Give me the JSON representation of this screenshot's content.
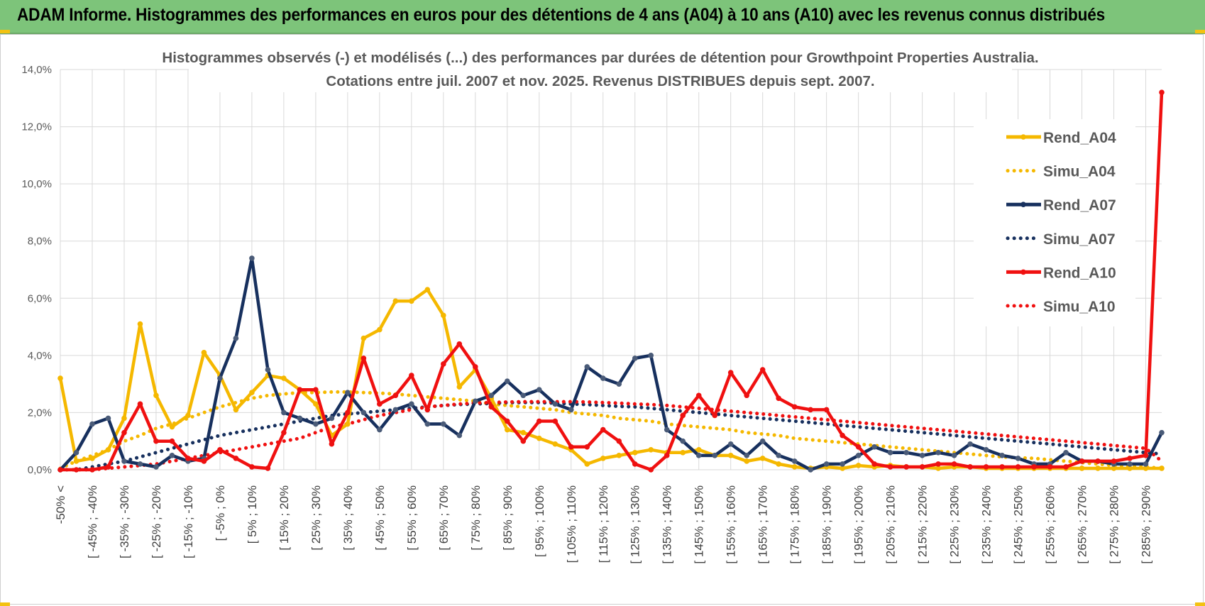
{
  "header": {
    "banner_title": "ADAM Informe. Histogrammes des performances en euros pour des détentions de 4 ans (A04) à 10 ans (A10) avec les revenus connus distribués"
  },
  "colors": {
    "banner_bg": "#7dc47a",
    "A04": "#f5b800",
    "A07": "#17305e",
    "A10": "#f01010",
    "grid": "#d9d9d9"
  },
  "chart_data": {
    "type": "line",
    "title_line1": "Histogrammes observés (-) et modélisés (...) des performances par durées de détention pour Growthpoint Properties Australia.",
    "title_line2": "Cotations entre juil. 2007 et nov. 2025. Revenus DISTRIBUES depuis sept. 2007.",
    "ylim": [
      0,
      14
    ],
    "y_ticks": [
      "0,0%",
      "2,0%",
      "4,0%",
      "6,0%",
      "8,0%",
      "10,0%",
      "12,0%",
      "14,0%"
    ],
    "x_tick_labels": [
      "-50% <",
      "[ -45% ; -40%",
      "[ -35% ; -30%",
      "[ -25% ; -20%",
      "[ -15% ; -10%",
      "[ -5% ; 0%",
      "[ 5% ; 10%",
      "[ 15% ; 20%",
      "[ 25% ; 30%",
      "[ 35% ; 40%",
      "[ 45% ; 50%",
      "[ 55% ; 60%",
      "[ 65% ; 70%",
      "[ 75% ; 80%",
      "[ 85% ; 90%",
      "[ 95% ; 100%",
      "[ 105% ; 110%",
      "[ 115% ; 120%",
      "[ 125% ; 130%",
      "[ 135% ; 140%",
      "[ 145% ; 150%",
      "[ 155% ; 160%",
      "[ 165% ; 170%",
      "[ 175% ; 180%",
      "[ 185% ; 190%",
      "[ 195% ; 200%",
      "[ 205% ; 210%",
      "[ 215% ; 220%",
      "[ 225% ; 230%",
      "[ 235% ; 240%",
      "[ 245% ; 250%",
      "[ 255% ; 260%",
      "[ 265% ; 270%",
      "[ 275% ; 280%",
      "[ 285% ; 290%"
    ],
    "n_categories": 70,
    "legend": [
      "Rend_A04",
      "Simu_A04",
      "Rend_A07",
      "Simu_A07",
      "Rend_A10",
      "Simu_A10"
    ],
    "series": [
      {
        "name": "Rend_A04",
        "style": "solid",
        "color": "#f5b800",
        "values": [
          3.2,
          0.3,
          0.4,
          0.7,
          1.8,
          5.1,
          2.6,
          1.5,
          1.9,
          4.1,
          3.3,
          2.1,
          2.7,
          3.3,
          3.2,
          2.8,
          2.3,
          1.2,
          1.6,
          4.6,
          4.9,
          5.9,
          5.9,
          6.3,
          5.4,
          2.9,
          3.5,
          2.5,
          1.4,
          1.3,
          1.1,
          0.9,
          0.7,
          0.2,
          0.4,
          0.5,
          0.6,
          0.7,
          0.6,
          0.6,
          0.7,
          0.5,
          0.5,
          0.3,
          0.4,
          0.2,
          0.1,
          0.05,
          0.1,
          0.05,
          0.15,
          0.1,
          0.15,
          0.1,
          0.1,
          0.05,
          0.1,
          0.1,
          0.05,
          0.05,
          0.05,
          0.05,
          0.05,
          0.05,
          0.05,
          0.05,
          0.05,
          0.05,
          0.05,
          0.05
        ]
      },
      {
        "name": "Simu_A04",
        "style": "dotted",
        "color": "#f5b800",
        "values": [
          0.05,
          0.3,
          0.5,
          0.7,
          1.0,
          1.2,
          1.45,
          1.6,
          1.8,
          2.0,
          2.2,
          2.35,
          2.5,
          2.6,
          2.65,
          2.7,
          2.7,
          2.72,
          2.72,
          2.7,
          2.68,
          2.65,
          2.6,
          2.55,
          2.5,
          2.45,
          2.4,
          2.3,
          2.25,
          2.2,
          2.15,
          2.1,
          2.0,
          1.95,
          1.9,
          1.8,
          1.75,
          1.7,
          1.6,
          1.55,
          1.5,
          1.45,
          1.4,
          1.3,
          1.25,
          1.2,
          1.1,
          1.05,
          1.0,
          0.95,
          0.9,
          0.85,
          0.8,
          0.75,
          0.7,
          0.65,
          0.6,
          0.55,
          0.5,
          0.45,
          0.42,
          0.4,
          0.35,
          0.3,
          0.25,
          0.2,
          0.15,
          0.12,
          0.1,
          0.05
        ]
      },
      {
        "name": "Rend_A07",
        "style": "solid",
        "color": "#17305e",
        "values": [
          0.0,
          0.6,
          1.6,
          1.8,
          0.3,
          0.2,
          0.1,
          0.5,
          0.3,
          0.4,
          3.2,
          4.6,
          7.4,
          3.5,
          2.0,
          1.8,
          1.6,
          1.8,
          2.7,
          2.0,
          1.4,
          2.1,
          2.3,
          1.6,
          1.6,
          1.2,
          2.4,
          2.6,
          3.1,
          2.6,
          2.8,
          2.3,
          2.1,
          3.6,
          3.2,
          3.0,
          3.9,
          4.0,
          1.4,
          1.0,
          0.5,
          0.5,
          0.9,
          0.5,
          1.0,
          0.5,
          0.3,
          0.0,
          0.2,
          0.2,
          0.5,
          0.8,
          0.6,
          0.6,
          0.5,
          0.6,
          0.5,
          0.9,
          0.7,
          0.5,
          0.4,
          0.2,
          0.2,
          0.6,
          0.3,
          0.3,
          0.2,
          0.2,
          0.2,
          1.3
        ]
      },
      {
        "name": "Simu_A07",
        "style": "dotted",
        "color": "#17305e",
        "values": [
          0.0,
          0.0,
          0.1,
          0.2,
          0.3,
          0.45,
          0.6,
          0.75,
          0.9,
          1.05,
          1.2,
          1.3,
          1.4,
          1.5,
          1.6,
          1.7,
          1.8,
          1.9,
          1.95,
          2.0,
          2.05,
          2.1,
          2.15,
          2.2,
          2.25,
          2.28,
          2.3,
          2.32,
          2.35,
          2.35,
          2.35,
          2.33,
          2.3,
          2.28,
          2.25,
          2.22,
          2.2,
          2.15,
          2.1,
          2.05,
          2.0,
          1.95,
          1.9,
          1.85,
          1.8,
          1.75,
          1.7,
          1.65,
          1.6,
          1.55,
          1.5,
          1.45,
          1.4,
          1.35,
          1.3,
          1.25,
          1.2,
          1.15,
          1.1,
          1.05,
          1.0,
          0.95,
          0.9,
          0.85,
          0.8,
          0.75,
          0.7,
          0.65,
          0.6,
          0.55
        ]
      },
      {
        "name": "Rend_A10",
        "style": "solid",
        "color": "#f01010",
        "values": [
          0.0,
          0.0,
          0.0,
          0.1,
          1.3,
          2.3,
          1.0,
          1.0,
          0.4,
          0.3,
          0.7,
          0.4,
          0.1,
          0.05,
          1.3,
          2.8,
          2.8,
          0.9,
          2.0,
          3.9,
          2.3,
          2.6,
          3.3,
          2.1,
          3.7,
          4.4,
          3.6,
          2.2,
          1.7,
          1.0,
          1.7,
          1.7,
          0.8,
          0.8,
          1.4,
          1.0,
          0.2,
          0.0,
          0.5,
          1.9,
          2.6,
          1.9,
          3.4,
          2.6,
          3.5,
          2.5,
          2.2,
          2.1,
          2.1,
          1.2,
          0.8,
          0.2,
          0.1,
          0.1,
          0.1,
          0.2,
          0.2,
          0.1,
          0.1,
          0.1,
          0.1,
          0.1,
          0.1,
          0.1,
          0.3,
          0.3,
          0.3,
          0.4,
          0.5,
          13.2
        ]
      },
      {
        "name": "Simu_A10",
        "style": "dotted",
        "color": "#f01010",
        "values": [
          0.0,
          0.0,
          0.0,
          0.05,
          0.1,
          0.15,
          0.2,
          0.3,
          0.4,
          0.5,
          0.6,
          0.7,
          0.8,
          0.9,
          1.0,
          1.1,
          1.3,
          1.5,
          1.6,
          1.75,
          1.9,
          2.0,
          2.1,
          2.2,
          2.25,
          2.3,
          2.33,
          2.35,
          2.37,
          2.38,
          2.38,
          2.38,
          2.38,
          2.37,
          2.35,
          2.33,
          2.3,
          2.28,
          2.25,
          2.2,
          2.15,
          2.1,
          2.05,
          2.0,
          1.95,
          1.9,
          1.85,
          1.8,
          1.75,
          1.7,
          1.65,
          1.6,
          1.55,
          1.5,
          1.45,
          1.4,
          1.35,
          1.3,
          1.25,
          1.2,
          1.15,
          1.1,
          1.05,
          1.0,
          0.95,
          0.9,
          0.85,
          0.8,
          0.75,
          0.3
        ]
      }
    ]
  }
}
